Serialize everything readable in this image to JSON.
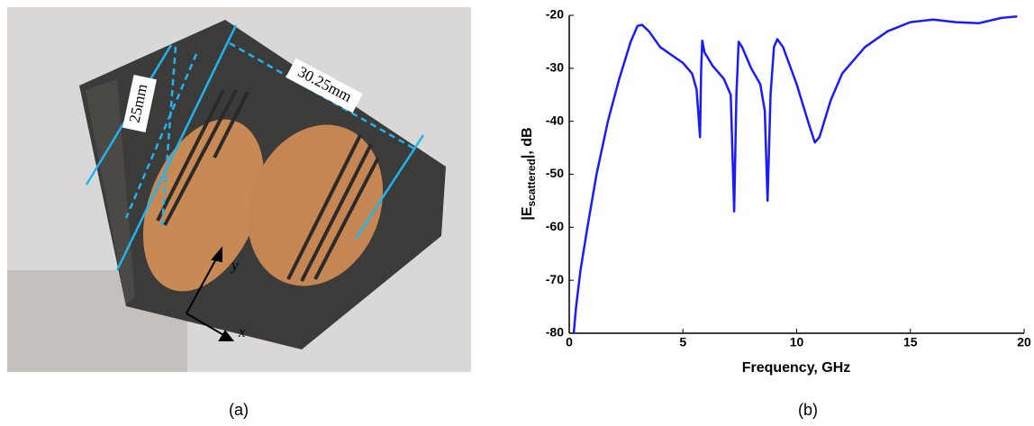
{
  "panel_labels": [
    "(a)",
    "(b)"
  ],
  "photo": {
    "dimension_labels": [
      "25mm",
      "30.25mm"
    ],
    "axis_labels": [
      "y",
      "x"
    ]
  },
  "chart_data": {
    "type": "line",
    "xlabel": "Frequency, GHz",
    "ylabel": [
      "|E",
      "scattered",
      "|, dB"
    ],
    "color": "#1a1aff",
    "x": [
      0.2,
      0.3,
      0.5,
      0.8,
      1.2,
      1.7,
      2.2,
      2.7,
      3.0,
      3.2,
      3.5,
      4.0,
      4.5,
      5.0,
      5.4,
      5.6,
      5.75,
      5.8,
      5.85,
      5.95,
      6.3,
      6.8,
      7.1,
      7.25,
      7.35,
      7.45,
      7.6,
      8.0,
      8.4,
      8.6,
      8.72,
      8.85,
      9.0,
      9.15,
      9.4,
      10.0,
      10.5,
      10.8,
      11.0,
      11.5,
      12.0,
      13.0,
      14.0,
      15.0,
      16.0,
      17.0,
      18.0,
      19.0,
      19.7
    ],
    "values": [
      -80,
      -75,
      -68,
      -60,
      -50,
      -40,
      -32,
      -25,
      -22,
      -21.8,
      -23,
      -26,
      -27.5,
      -29,
      -31,
      -34,
      -43,
      -30,
      -24.8,
      -27,
      -29.5,
      -32,
      -35,
      -57,
      -35,
      -25,
      -26,
      -30,
      -33,
      -38,
      -55,
      -35,
      -26,
      -24.5,
      -26,
      -33,
      -40,
      -44,
      -43,
      -36,
      -31,
      -26,
      -23,
      -21.3,
      -20.8,
      -21.3,
      -21.5,
      -20.5,
      -20.2
    ],
    "xlim": [
      0,
      20
    ],
    "ylim": [
      -80,
      -20
    ],
    "xticks": [
      0,
      5,
      10,
      15,
      20
    ],
    "yticks": [
      -80,
      -70,
      -60,
      -50,
      -40,
      -30,
      -20
    ]
  }
}
